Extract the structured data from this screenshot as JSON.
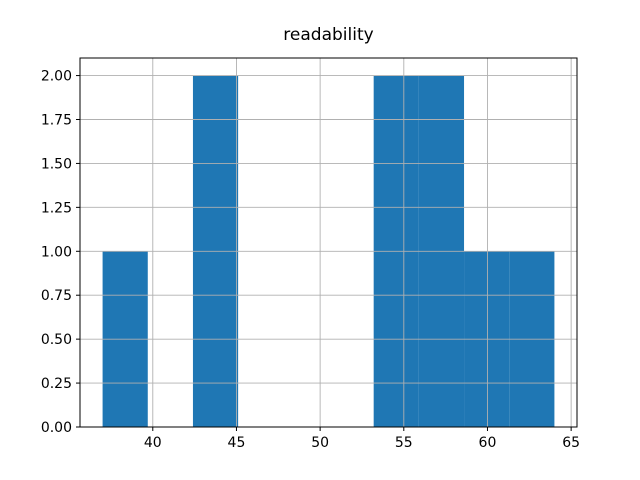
{
  "figure": {
    "background": "#ffffff"
  },
  "chart_data": {
    "type": "bar",
    "subtype": "histogram",
    "title": "readability",
    "xlabel": "",
    "ylabel": "",
    "bin_edges": [
      37.0,
      39.7,
      42.4,
      45.1,
      47.8,
      50.5,
      53.2,
      55.9,
      58.6,
      61.3,
      64.0
    ],
    "counts": [
      1,
      0,
      2,
      0,
      0,
      0,
      2,
      2,
      1,
      1
    ],
    "xlim": [
      35.65,
      65.35
    ],
    "ylim": [
      0,
      2.1
    ],
    "xticks": [
      {
        "value": 40,
        "label": "40"
      },
      {
        "value": 45,
        "label": "45"
      },
      {
        "value": 50,
        "label": "50"
      },
      {
        "value": 55,
        "label": "55"
      },
      {
        "value": 60,
        "label": "60"
      },
      {
        "value": 65,
        "label": "65"
      }
    ],
    "yticks": [
      {
        "value": 0.0,
        "label": "0.00"
      },
      {
        "value": 0.25,
        "label": "0.25"
      },
      {
        "value": 0.5,
        "label": "0.50"
      },
      {
        "value": 0.75,
        "label": "0.75"
      },
      {
        "value": 1.0,
        "label": "1.00"
      },
      {
        "value": 1.25,
        "label": "1.25"
      },
      {
        "value": 1.5,
        "label": "1.50"
      },
      {
        "value": 1.75,
        "label": "1.75"
      },
      {
        "value": 2.0,
        "label": "2.00"
      }
    ],
    "grid": "on",
    "grid_over_bars": true,
    "legend": "none",
    "bar_color": "#1f77b4",
    "grid_color": "#b0b0b0",
    "axis_color": "#000000",
    "text_color": "#000000"
  }
}
